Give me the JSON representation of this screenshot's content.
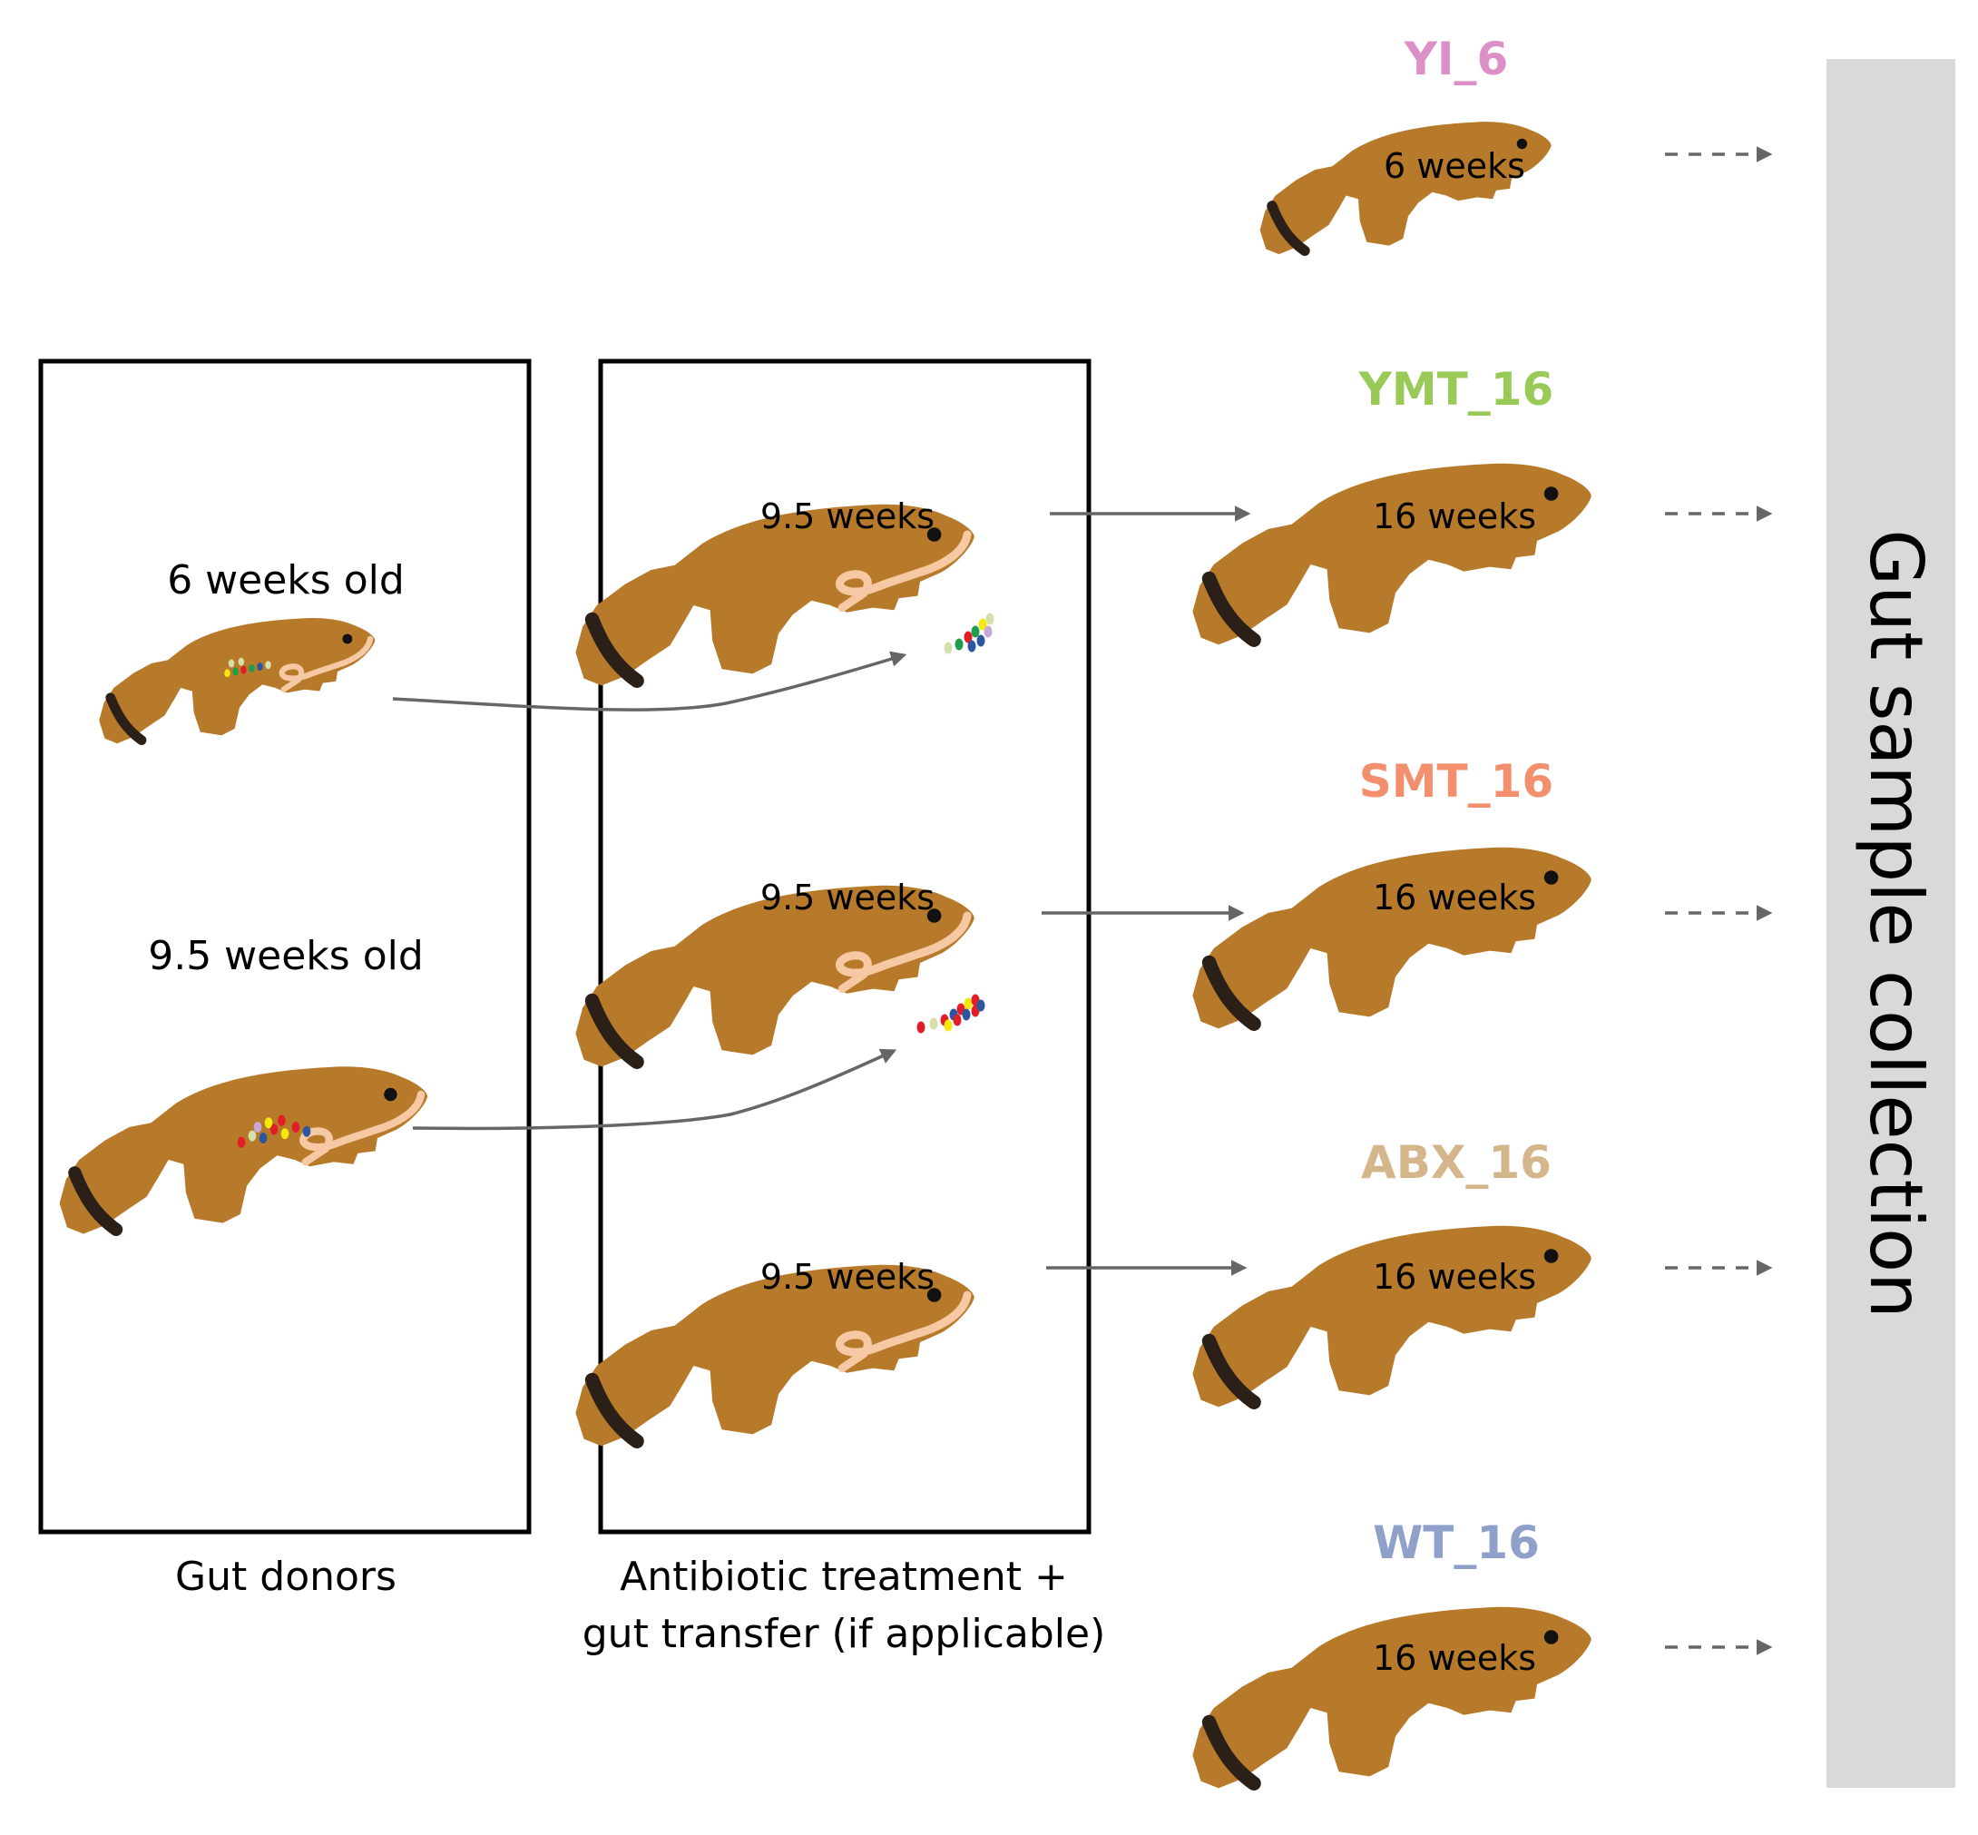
{
  "donors": {
    "caption": "Gut donors",
    "young_label": "6 weeks old",
    "old_label": "9.5 weeks old"
  },
  "treatment": {
    "caption_line1": "Antibiotic treatment +",
    "caption_line2": "gut transfer (if applicable)",
    "fish_age": "9.5 weeks"
  },
  "groups": [
    {
      "name": "YI_6",
      "color": "#dd8fc7",
      "age": "6 weeks"
    },
    {
      "name": "YMT_16",
      "color": "#99c957",
      "age": "16 weeks"
    },
    {
      "name": "SMT_16",
      "color": "#f48f6d",
      "age": "16 weeks"
    },
    {
      "name": "ABX_16",
      "color": "#d4b68a",
      "age": "16 weeks"
    },
    {
      "name": "WT_16",
      "color": "#8fa1cb",
      "age": "16 weeks"
    }
  ],
  "collection_label": "Gut sample collection",
  "colors": {
    "fish_body": "#b77a2a",
    "tail_band": "#2a2018",
    "gut": "#f6c9a4",
    "arrow": "#666666",
    "collection_bar": "#d9d9d9"
  },
  "microbe_colors": [
    "#e11d26",
    "#f3ea0c",
    "#2a57a0",
    "#1e9e48",
    "#d7dfaa",
    "#c6a9d6"
  ]
}
